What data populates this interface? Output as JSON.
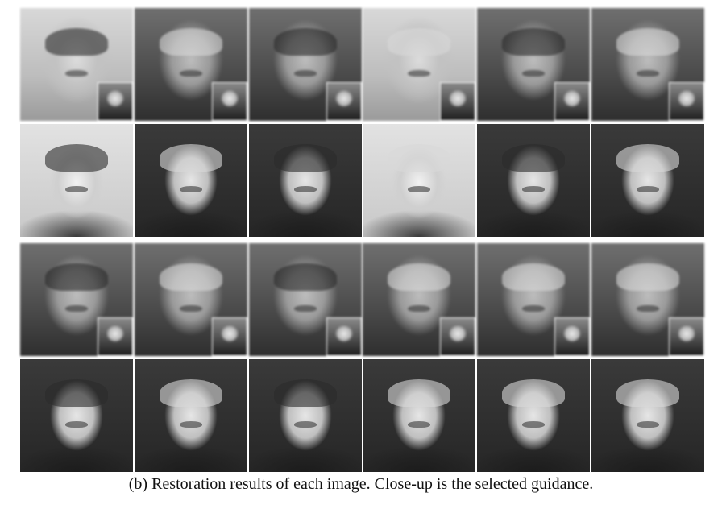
{
  "caption": "(b) Restoration results of each image. Close-up is the selected guidance.",
  "figure": {
    "groups": [
      {
        "degraded_row": [
          {
            "tone": "light",
            "hair": "dark",
            "guidance_inset": true
          },
          {
            "tone": "dark",
            "hair": "light",
            "guidance_inset": true
          },
          {
            "tone": "dark",
            "hair": "dark",
            "guidance_inset": true
          },
          {
            "tone": "light",
            "hair": "light",
            "guidance_inset": true
          },
          {
            "tone": "dark",
            "hair": "dark",
            "guidance_inset": true
          },
          {
            "tone": "dark",
            "hair": "light",
            "guidance_inset": true
          }
        ],
        "restored_row": [
          {
            "tone": "light",
            "hair": "dark"
          },
          {
            "tone": "dark",
            "hair": "light"
          },
          {
            "tone": "dark",
            "hair": "dark"
          },
          {
            "tone": "light",
            "hair": "light"
          },
          {
            "tone": "dark",
            "hair": "dark"
          },
          {
            "tone": "dark",
            "hair": "light"
          }
        ]
      },
      {
        "degraded_row": [
          {
            "tone": "dark",
            "hair": "dark",
            "guidance_inset": true
          },
          {
            "tone": "dark",
            "hair": "light",
            "guidance_inset": true
          },
          {
            "tone": "dark",
            "hair": "dark",
            "guidance_inset": true
          },
          {
            "tone": "dark",
            "hair": "light",
            "guidance_inset": true
          },
          {
            "tone": "dark",
            "hair": "light",
            "guidance_inset": true
          },
          {
            "tone": "dark",
            "hair": "light",
            "guidance_inset": true
          }
        ],
        "restored_row": [
          {
            "tone": "dark",
            "hair": "dark"
          },
          {
            "tone": "dark",
            "hair": "light"
          },
          {
            "tone": "dark",
            "hair": "dark"
          },
          {
            "tone": "dark",
            "hair": "light"
          },
          {
            "tone": "dark",
            "hair": "light"
          },
          {
            "tone": "dark",
            "hair": "light"
          }
        ]
      }
    ]
  }
}
